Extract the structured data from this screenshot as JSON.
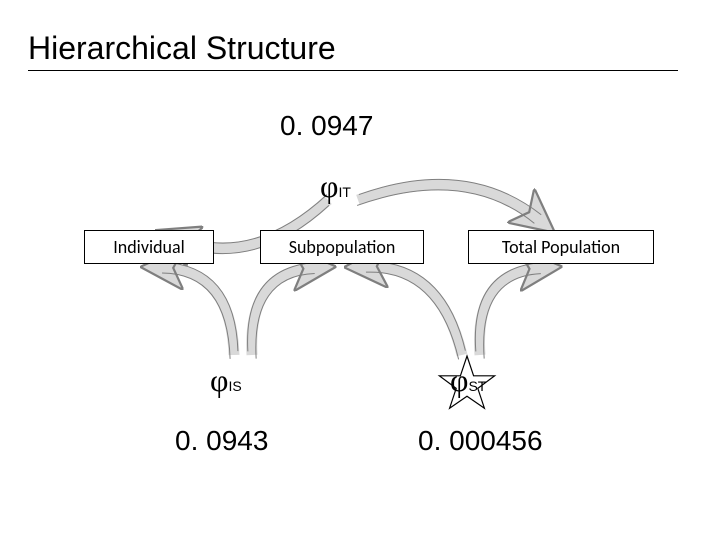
{
  "title": "Hierarchical Structure",
  "topValue": "0. 0947",
  "phiIT": {
    "symbol": "φ",
    "sub": "IT"
  },
  "phiIS": {
    "symbol": "φ",
    "sub": "IS"
  },
  "phiST": {
    "symbol": "φ",
    "sub": "ST"
  },
  "boxes": {
    "individual": "Individual",
    "subpopulation": "Subpopulation",
    "total": "Total Population"
  },
  "leftValue": "0. 0943",
  "rightValue": "0. 000456",
  "style": {
    "background": "#ffffff",
    "text_color": "#000000",
    "box_border": "#000000",
    "arrow_stroke": "#7f7f7f",
    "arrow_fill": "#d9d9d9",
    "arrow_stroke_width": 1,
    "star_stroke": "#000000",
    "star_fill": "#ffffff",
    "title_fontsize": 32,
    "value_fontsize": 28,
    "phi_fontsize": 32,
    "phi_sub_fontsize": 14,
    "box_fontsize": 18,
    "positions": {
      "title": [
        28,
        30
      ],
      "divider": [
        28,
        70,
        650
      ],
      "topValue": [
        280,
        110
      ],
      "phiIT": [
        320,
        168
      ],
      "box_individual": [
        84,
        230,
        130,
        32
      ],
      "box_subpopulation": [
        260,
        230,
        164,
        32
      ],
      "box_total": [
        468,
        230,
        186,
        32
      ],
      "phiIS": [
        210,
        362
      ],
      "phiST": [
        450,
        362
      ],
      "star": [
        437,
        353,
        60,
        60
      ],
      "leftValue": [
        175,
        425
      ],
      "rightValue": [
        418,
        425
      ]
    },
    "arrows": {
      "top_left": {
        "start": [
          328,
          200
        ],
        "end": [
          156,
          232
        ],
        "curve": -55,
        "width": 11
      },
      "top_right": {
        "start": [
          358,
          200
        ],
        "end": [
          556,
          232
        ],
        "curve": -55,
        "width": 11
      },
      "bot_ll": {
        "start": [
          234,
          355
        ],
        "end": [
          146,
          266
        ],
        "curve": 58,
        "width": 11
      },
      "bot_lr": {
        "start": [
          252,
          355
        ],
        "end": [
          330,
          266
        ],
        "curve": -58,
        "width": 11
      },
      "bot_rl": {
        "start": [
          462,
          355
        ],
        "end": [
          348,
          266
        ],
        "curve": 58,
        "width": 11
      },
      "bot_rr": {
        "start": [
          480,
          355
        ],
        "end": [
          556,
          266
        ],
        "curve": -58,
        "width": 11
      }
    }
  }
}
